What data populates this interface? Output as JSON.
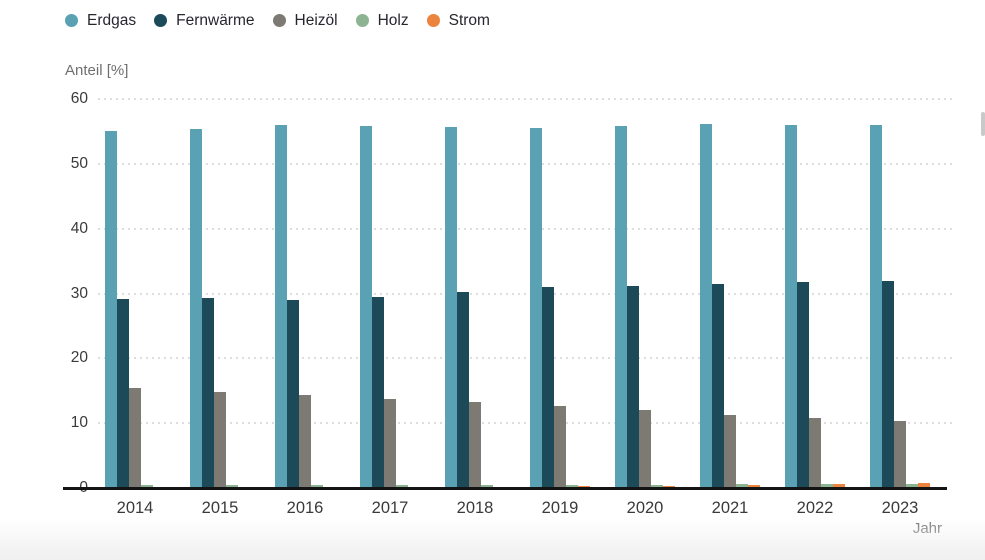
{
  "chart_data": {
    "type": "bar",
    "title": "",
    "xlabel": "Jahr",
    "ylabel": "Anteil [%]",
    "ylim": [
      0,
      60
    ],
    "y_ticks": [
      0,
      10,
      20,
      30,
      40,
      50,
      60
    ],
    "grid": "horizontal-dotted",
    "legend_position": "top-left",
    "categories": [
      "2014",
      "2015",
      "2016",
      "2017",
      "2018",
      "2019",
      "2020",
      "2021",
      "2022",
      "2023"
    ],
    "series": [
      {
        "name": "Erdgas",
        "color": "#5aa1b3",
        "values": [
          55.0,
          55.3,
          56.0,
          55.9,
          55.7,
          55.6,
          55.8,
          56.1,
          56.0,
          56.0
        ]
      },
      {
        "name": "Fernwärme",
        "color": "#1c4a59",
        "values": [
          29.1,
          29.3,
          29.0,
          29.4,
          30.3,
          31.0,
          31.1,
          31.5,
          31.8,
          32.0
        ]
      },
      {
        "name": "Heizöl",
        "color": "#7d7a73",
        "values": [
          15.4,
          14.8,
          14.4,
          13.8,
          13.2,
          12.6,
          12.1,
          11.2,
          10.8,
          10.4
        ]
      },
      {
        "name": "Holz",
        "color": "#8cb492",
        "values": [
          0.4,
          0.4,
          0.4,
          0.4,
          0.5,
          0.5,
          0.5,
          0.6,
          0.6,
          0.6
        ]
      },
      {
        "name": "Strom",
        "color": "#ec833e",
        "values": [
          0.2,
          0.2,
          0.2,
          0.2,
          0.2,
          0.3,
          0.3,
          0.5,
          0.6,
          0.7
        ]
      }
    ]
  },
  "colors": {
    "axis_line": "#141414",
    "gridline": "#dedede",
    "tick_text": "#3a3a3a",
    "muted_text": "#707070",
    "legend_text": "#26262e"
  }
}
